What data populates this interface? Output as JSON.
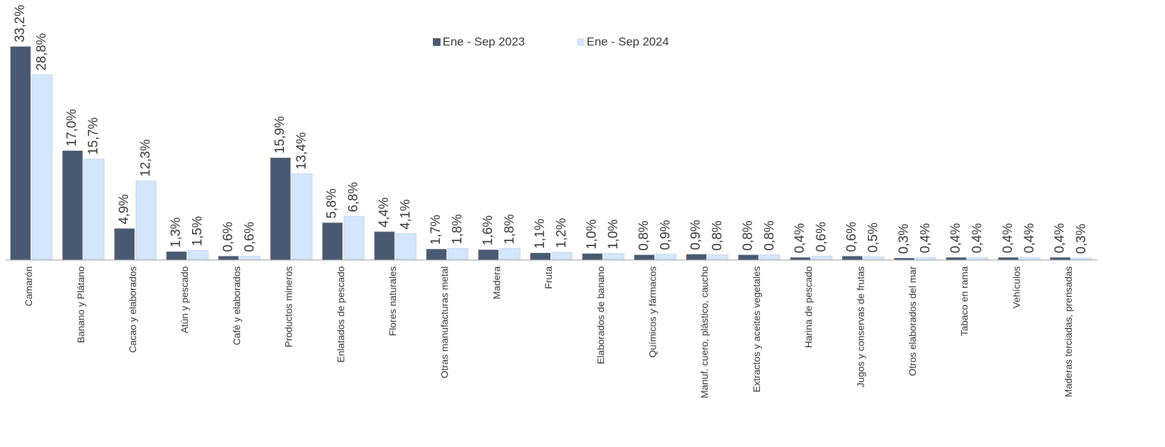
{
  "chart_data": {
    "type": "bar",
    "categories": [
      "Camarón",
      "Banano y Plátano",
      "Cacao y elaborados",
      "Atún y pescado",
      "Café y elaborados",
      "Productos mineros",
      "Enlatados de pescado",
      "Flores naturales",
      "Otras manufacturas metal",
      "Madera",
      "Fruta",
      "Elaborados de banano",
      "Químicos y fármacos",
      "Manuf. cuero, plástico, caucho",
      "Extractos y aceites vegetales",
      "Harina de pescado",
      "Jugos y conservas de frutas",
      "Otros elaborados del mar",
      "Tabaco en rama",
      "Vehículos",
      "Maderas terciadas, prensadas"
    ],
    "series": [
      {
        "name": "Ene - Sep 2023",
        "color": "#4a5a72",
        "values": [
          33.2,
          17.0,
          4.9,
          1.3,
          0.6,
          15.9,
          5.8,
          4.4,
          1.7,
          1.6,
          1.1,
          1.0,
          0.8,
          0.9,
          0.8,
          0.4,
          0.6,
          0.3,
          0.4,
          0.4,
          0.4
        ],
        "value_labels": [
          "33,2%",
          "17,0%",
          "4,9%",
          "1,3%",
          "0,6%",
          "15,9%",
          "5,8%",
          "4,4%",
          "1,7%",
          "1,6%",
          "1,1%",
          "1,0%",
          "0,8%",
          "0,9%",
          "0,8%",
          "0,4%",
          "0,6%",
          "0,3%",
          "0,4%",
          "0,4%",
          "0,4%"
        ]
      },
      {
        "name": "Ene - Sep 2024",
        "color": "#d4e6fb",
        "values": [
          28.8,
          15.7,
          12.3,
          1.5,
          0.6,
          13.4,
          6.8,
          4.1,
          1.8,
          1.8,
          1.2,
          1.0,
          0.9,
          0.8,
          0.8,
          0.6,
          0.5,
          0.4,
          0.4,
          0.4,
          0.3
        ],
        "value_labels": [
          "28,8%",
          "15,7%",
          "12,3%",
          "1,5%",
          "0,6%",
          "13,4%",
          "6,8%",
          "4,1%",
          "1,8%",
          "1,8%",
          "1,2%",
          "1,0%",
          "0,9%",
          "0,8%",
          "0,8%",
          "0,6%",
          "0,5%",
          "0,4%",
          "0,4%",
          "0,4%",
          "0,3%"
        ]
      }
    ]
  }
}
